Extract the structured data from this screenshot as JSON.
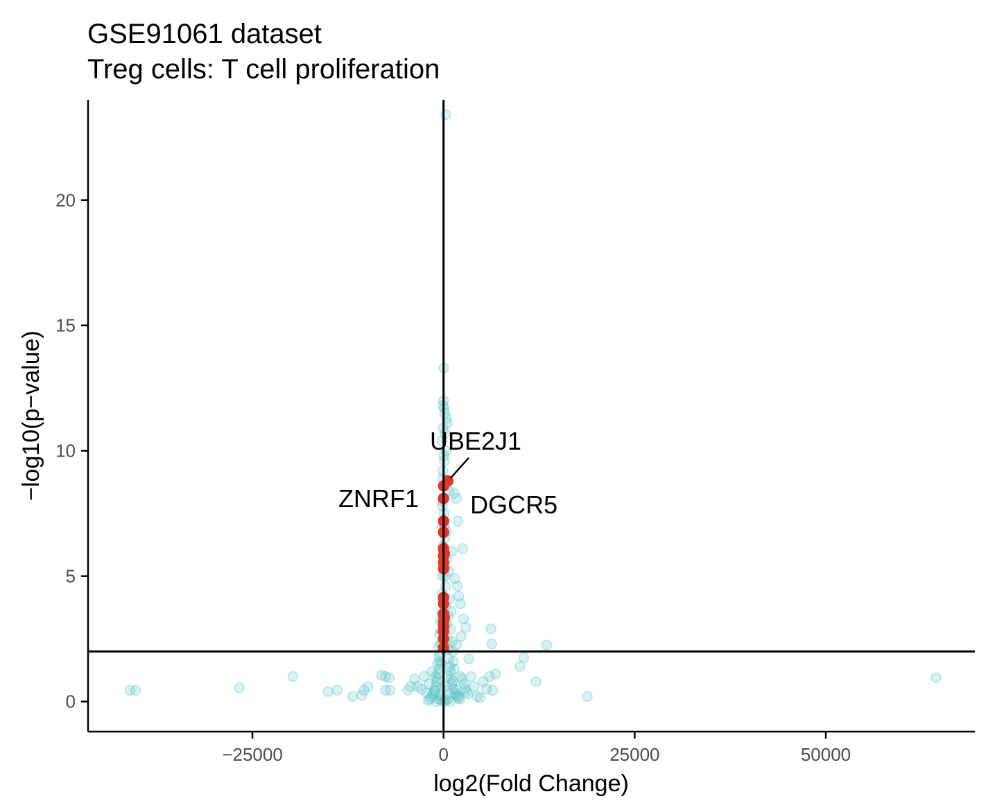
{
  "chart_data": {
    "type": "scatter",
    "title": "GSE91061 dataset",
    "subtitle": "Treg cells: T cell proliferation",
    "xlabel": "log2(Fold Change)",
    "ylabel": "−log10(p−value)",
    "xlim": [
      -46500,
      69500
    ],
    "ylim": [
      -1.2,
      24
    ],
    "x_ticks": [
      -25000,
      0,
      25000,
      50000
    ],
    "x_tick_labels": [
      "−25000",
      "0",
      "25000",
      "50000"
    ],
    "y_ticks": [
      0,
      5,
      10,
      15,
      20
    ],
    "y_tick_labels": [
      "0",
      "5",
      "10",
      "15",
      "20"
    ],
    "grid": false,
    "threshold_y": 2,
    "threshold_x": 0,
    "colors": {
      "background": "#4dbdc3",
      "highlight": "#e0392b",
      "axis": "#000000"
    },
    "series": [
      {
        "role": "background",
        "points": [
          [
            -41000,
            0.45
          ],
          [
            -40300,
            0.45
          ],
          [
            -26700,
            0.55
          ],
          [
            -19700,
            1.0
          ],
          [
            -15100,
            0.4
          ],
          [
            -13900,
            0.45
          ],
          [
            -11900,
            0.2
          ],
          [
            -10700,
            0.25
          ],
          [
            -10400,
            0.45
          ],
          [
            -9900,
            0.6
          ],
          [
            -8100,
            1.05
          ],
          [
            -7600,
            1.0
          ],
          [
            -7100,
            0.95
          ],
          [
            -7600,
            0.45
          ],
          [
            -7000,
            0.45
          ],
          [
            -4700,
            0.45
          ],
          [
            -4300,
            0.6
          ],
          [
            -3800,
            0.9
          ],
          [
            -3400,
            0.6
          ],
          [
            -2900,
            0.5
          ],
          [
            -2500,
            1.0
          ],
          [
            -2200,
            0.35
          ],
          [
            -1900,
            0.7
          ],
          [
            -1500,
            1.2
          ],
          [
            -1100,
            0.4
          ],
          [
            -800,
            0.9
          ],
          [
            -500,
            0.25
          ],
          [
            -200,
            0.5
          ],
          [
            -600,
            2.2
          ],
          [
            -300,
            1.5
          ],
          [
            200,
            0.6
          ],
          [
            500,
            1.0
          ],
          [
            800,
            0.3
          ],
          [
            1200,
            0.8
          ],
          [
            1600,
            0.5
          ],
          [
            2000,
            0.2
          ],
          [
            2400,
            0.9
          ],
          [
            2800,
            0.5
          ],
          [
            3200,
            0.3
          ],
          [
            3600,
            1.0
          ],
          [
            4000,
            0.6
          ],
          [
            4400,
            0.2
          ],
          [
            4800,
            0.15
          ],
          [
            5200,
            0.8
          ],
          [
            5600,
            0.5
          ],
          [
            6000,
            1.0
          ],
          [
            6400,
            0.45
          ],
          [
            6800,
            1.1
          ],
          [
            3300,
            1.7
          ],
          [
            6200,
            2.9
          ],
          [
            6300,
            2.3
          ],
          [
            10000,
            1.4
          ],
          [
            10500,
            1.75
          ],
          [
            12100,
            0.8
          ],
          [
            13500,
            2.25
          ],
          [
            18800,
            0.2
          ],
          [
            64400,
            0.95
          ],
          [
            300,
            23.4
          ],
          [
            0,
            13.3
          ],
          [
            0,
            12.0
          ],
          [
            -100,
            11.8
          ],
          [
            100,
            11.7
          ],
          [
            400,
            11.3
          ],
          [
            500,
            11.1
          ],
          [
            200,
            10.7
          ],
          [
            -200,
            10.4
          ],
          [
            300,
            10.0
          ],
          [
            100,
            9.6
          ],
          [
            -100,
            9.2
          ],
          [
            700,
            8.4
          ],
          [
            1400,
            8.3
          ],
          [
            1700,
            8.1
          ],
          [
            1900,
            7.2
          ],
          [
            2500,
            6.1
          ],
          [
            1100,
            6.0
          ],
          [
            400,
            5.7
          ],
          [
            1500,
            4.9
          ],
          [
            1800,
            4.6
          ],
          [
            2000,
            4.2
          ],
          [
            2200,
            3.9
          ],
          [
            2600,
            3.3
          ],
          [
            2900,
            2.95
          ],
          [
            2300,
            2.6
          ],
          [
            1700,
            2.25
          ],
          [
            1200,
            2.0
          ],
          [
            -100,
            8.9
          ],
          [
            -150,
            8.0
          ],
          [
            100,
            7.5
          ],
          [
            -200,
            7.0
          ],
          [
            150,
            6.5
          ],
          [
            -100,
            6.2
          ],
          [
            200,
            5.4
          ],
          [
            -150,
            5.0
          ],
          [
            250,
            4.6
          ],
          [
            -200,
            4.3
          ],
          [
            300,
            3.8
          ],
          [
            -250,
            3.5
          ],
          [
            400,
            3.1
          ],
          [
            -300,
            2.8
          ],
          [
            500,
            2.5
          ],
          [
            -350,
            2.3
          ],
          [
            600,
            2.1
          ],
          [
            -400,
            1.9
          ],
          [
            700,
            1.7
          ],
          [
            -500,
            1.6
          ],
          [
            800,
            1.4
          ],
          [
            -600,
            1.3
          ],
          [
            900,
            1.2
          ],
          [
            -700,
            1.1
          ],
          [
            1000,
            0.9
          ],
          [
            -900,
            0.8
          ],
          [
            1100,
            0.7
          ],
          [
            -1000,
            0.6
          ],
          [
            1300,
            0.5
          ],
          [
            -1200,
            0.45
          ],
          [
            1500,
            0.35
          ],
          [
            -1400,
            0.3
          ],
          [
            1700,
            0.25
          ],
          [
            -1600,
            0.2
          ],
          [
            1900,
            0.15
          ],
          [
            -1800,
            0.1
          ],
          [
            2100,
            0.1
          ],
          [
            -2000,
            0.05
          ],
          [
            0,
            0.0
          ],
          [
            300,
            0.05
          ],
          [
            -300,
            0.05
          ],
          [
            600,
            0.1
          ],
          [
            -600,
            0.1
          ],
          [
            900,
            0.0
          ],
          [
            -900,
            0.0
          ],
          [
            150,
            3.0
          ],
          [
            -100,
            4.0
          ],
          [
            200,
            5.0
          ],
          [
            -50,
            6.0
          ],
          [
            100,
            7.0
          ],
          [
            -150,
            7.8
          ],
          [
            250,
            8.6
          ],
          [
            50,
            9.8
          ],
          [
            -50,
            10.9
          ],
          [
            150,
            11.5
          ],
          [
            600,
            3.4
          ],
          [
            800,
            4.1
          ],
          [
            900,
            2.9
          ],
          [
            1000,
            3.6
          ],
          [
            1100,
            2.4
          ],
          [
            700,
            5.2
          ],
          [
            400,
            6.8
          ],
          [
            -400,
            3.2
          ],
          [
            -500,
            2.7
          ],
          [
            -600,
            1.8
          ],
          [
            -800,
            1.5
          ],
          [
            -1000,
            1.0
          ],
          [
            1300,
            1.6
          ],
          [
            1400,
            1.3
          ],
          [
            2200,
            1.0
          ],
          [
            2700,
            0.7
          ],
          [
            3000,
            0.4
          ]
        ]
      },
      {
        "role": "highlight",
        "points": [
          [
            550,
            8.8
          ],
          [
            0,
            8.6
          ],
          [
            0,
            8.1
          ],
          [
            0,
            7.2
          ],
          [
            0,
            6.75
          ],
          [
            0,
            6.1
          ],
          [
            0,
            5.8
          ],
          [
            0,
            5.55
          ],
          [
            0,
            5.3
          ],
          [
            0,
            4.15
          ],
          [
            0,
            3.9
          ],
          [
            0,
            3.5
          ],
          [
            0,
            3.2
          ],
          [
            0,
            3.0
          ],
          [
            0,
            2.8
          ],
          [
            0,
            2.5
          ],
          [
            0,
            2.15
          ],
          [
            100,
            5.9
          ],
          [
            100,
            3.35
          ]
        ]
      }
    ],
    "labels": [
      {
        "text": "UBE2J1",
        "x": 4200,
        "y": 10.05,
        "point_x": 550,
        "point_y": 8.8,
        "connector": true
      },
      {
        "text": "ZNRF1",
        "x": -8500,
        "y": 7.75,
        "point_x": 0,
        "point_y": 8.1,
        "connector": false
      },
      {
        "text": "DGCR5",
        "x": 9200,
        "y": 7.5,
        "point_x": 0,
        "point_y": 7.2,
        "connector": false
      }
    ]
  }
}
